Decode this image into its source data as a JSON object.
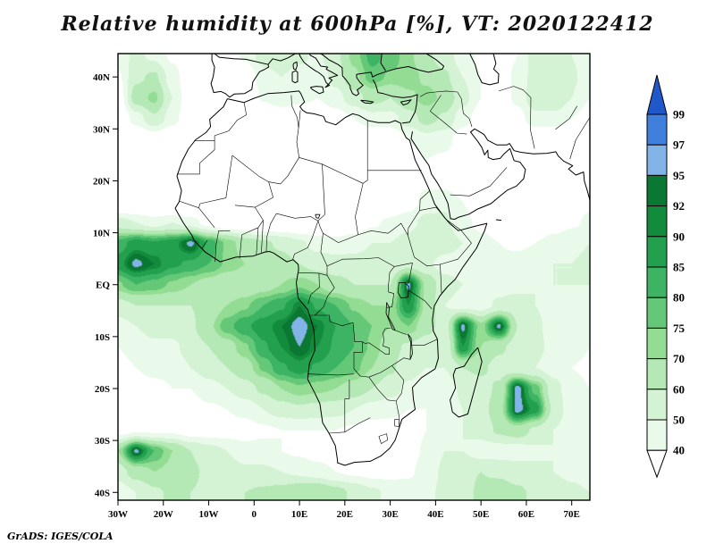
{
  "chart_data": {
    "type": "heatmap",
    "title": "Relative humidity at 600hPa [%], VT: 2020122412",
    "variable": "Relative humidity",
    "pressure_level": "600hPa",
    "units": "%",
    "valid_time": "2020122412",
    "credit": "GrADS: IGES/COLA",
    "region": {
      "lon_min": -30,
      "lon_max": 74,
      "lat_min": -41.5,
      "lat_max": 44.5
    },
    "x_ticks": [
      {
        "label": "30W",
        "lon": -30
      },
      {
        "label": "20W",
        "lon": -20
      },
      {
        "label": "10W",
        "lon": -10
      },
      {
        "label": "0",
        "lon": 0
      },
      {
        "label": "10E",
        "lon": 10
      },
      {
        "label": "20E",
        "lon": 20
      },
      {
        "label": "30E",
        "lon": 30
      },
      {
        "label": "40E",
        "lon": 40
      },
      {
        "label": "50E",
        "lon": 50
      },
      {
        "label": "60E",
        "lon": 60
      },
      {
        "label": "70E",
        "lon": 70
      }
    ],
    "y_ticks": [
      {
        "label": "40N",
        "lat": 40
      },
      {
        "label": "30N",
        "lat": 30
      },
      {
        "label": "20N",
        "lat": 20
      },
      {
        "label": "10N",
        "lat": 10
      },
      {
        "label": "EQ",
        "lat": 0
      },
      {
        "label": "10S",
        "lat": -10
      },
      {
        "label": "20S",
        "lat": -20
      },
      {
        "label": "30S",
        "lat": -30
      },
      {
        "label": "40S",
        "lat": -40
      }
    ],
    "levels": [
      40,
      50,
      60,
      70,
      75,
      80,
      85,
      90,
      92,
      95,
      97,
      99
    ],
    "colorbar_labels": [
      "99",
      "97",
      "95",
      "92",
      "90",
      "85",
      "80",
      "75",
      "70",
      "60",
      "50",
      "40"
    ],
    "band_colors": [
      "#ffffff",
      "#eafaea",
      "#d4f2d4",
      "#b4e8b4",
      "#93dc93",
      "#64c878",
      "#3cb464",
      "#23a04e",
      "#128c3c",
      "#0a7832",
      "#82b4e8",
      "#4080dc",
      "#2058cc"
    ],
    "grid": {
      "lon_start": -30,
      "lon_step": 4,
      "lat_start": 44,
      "lat_step": -4,
      "values": [
        [
          45,
          52,
          48,
          38,
          32,
          30,
          32,
          42,
          55,
          58,
          52,
          48,
          58,
          72,
          82,
          78,
          72,
          62,
          55,
          45,
          38,
          34,
          40,
          55,
          58,
          50,
          42
        ],
        [
          38,
          58,
          62,
          45,
          30,
          26,
          26,
          30,
          45,
          50,
          46,
          44,
          54,
          68,
          78,
          74,
          74,
          68,
          62,
          50,
          40,
          35,
          42,
          55,
          58,
          52,
          44
        ],
        [
          32,
          65,
          72,
          50,
          30,
          24,
          20,
          24,
          42,
          50,
          44,
          40,
          46,
          56,
          64,
          60,
          68,
          73,
          68,
          54,
          40,
          34,
          42,
          58,
          60,
          50,
          40
        ],
        [
          26,
          45,
          58,
          45,
          28,
          18,
          14,
          15,
          20,
          26,
          25,
          30,
          34,
          40,
          46,
          46,
          55,
          64,
          58,
          44,
          34,
          30,
          36,
          46,
          46,
          40,
          34
        ],
        [
          20,
          26,
          32,
          26,
          15,
          10,
          9,
          9,
          10,
          14,
          15,
          19,
          24,
          29,
          30,
          30,
          40,
          46,
          44,
          34,
          28,
          24,
          26,
          30,
          30,
          30,
          30
        ],
        [
          16,
          18,
          22,
          18,
          12,
          8,
          7,
          7,
          8,
          10,
          11,
          14,
          18,
          22,
          24,
          25,
          33,
          40,
          38,
          30,
          25,
          22,
          22,
          26,
          28,
          30,
          32
        ],
        [
          15,
          15,
          16,
          14,
          10,
          8,
          7,
          6,
          7,
          9,
          10,
          12,
          15,
          18,
          20,
          22,
          30,
          38,
          35,
          28,
          24,
          20,
          20,
          24,
          28,
          32,
          35
        ],
        [
          20,
          18,
          16,
          14,
          12,
          10,
          8,
          8,
          9,
          10,
          11,
          13,
          16,
          20,
          24,
          28,
          34,
          44,
          48,
          40,
          30,
          24,
          22,
          26,
          30,
          34,
          38
        ],
        [
          55,
          50,
          45,
          50,
          45,
          35,
          30,
          26,
          25,
          26,
          24,
          24,
          26,
          32,
          38,
          42,
          46,
          54,
          52,
          44,
          36,
          30,
          28,
          30,
          34,
          38,
          42
        ],
        [
          82,
          88,
          86,
          88,
          96,
          84,
          74,
          66,
          62,
          58,
          52,
          46,
          44,
          46,
          50,
          50,
          55,
          60,
          55,
          50,
          45,
          40,
          38,
          40,
          44,
          48,
          50
        ],
        [
          88,
          96,
          92,
          86,
          84,
          80,
          74,
          70,
          68,
          64,
          60,
          56,
          54,
          54,
          54,
          52,
          56,
          52,
          46,
          45,
          42,
          42,
          44,
          46,
          50,
          50,
          52
        ],
        [
          74,
          80,
          78,
          74,
          70,
          66,
          62,
          62,
          66,
          70,
          74,
          70,
          64,
          60,
          60,
          60,
          96,
          68,
          54,
          50,
          46,
          46,
          46,
          50,
          50,
          50,
          50
        ],
        [
          56,
          60,
          60,
          60,
          60,
          64,
          70,
          74,
          80,
          84,
          92,
          84,
          80,
          74,
          70,
          70,
          90,
          68,
          50,
          46,
          46,
          52,
          56,
          50,
          46,
          44,
          44
        ],
        [
          46,
          50,
          54,
          54,
          58,
          68,
          78,
          84,
          88,
          92,
          97,
          92,
          85,
          80,
          75,
          70,
          75,
          64,
          55,
          96,
          72,
          96,
          60,
          52,
          46,
          40,
          40
        ],
        [
          40,
          44,
          48,
          48,
          54,
          60,
          66,
          74,
          84,
          90,
          95,
          90,
          84,
          80,
          74,
          64,
          58,
          54,
          50,
          90,
          70,
          62,
          56,
          52,
          48,
          44,
          40
        ],
        [
          36,
          40,
          44,
          44,
          50,
          55,
          60,
          66,
          76,
          84,
          88,
          84,
          80,
          77,
          70,
          62,
          54,
          50,
          50,
          60,
          62,
          56,
          52,
          50,
          46,
          40,
          38
        ],
        [
          30,
          34,
          36,
          40,
          40,
          46,
          50,
          56,
          62,
          70,
          74,
          72,
          70,
          66,
          60,
          54,
          48,
          44,
          44,
          52,
          56,
          62,
          97,
          78,
          54,
          44,
          40
        ],
        [
          28,
          30,
          30,
          34,
          34,
          38,
          40,
          44,
          50,
          55,
          58,
          56,
          54,
          50,
          46,
          44,
          40,
          40,
          44,
          50,
          56,
          66,
          97,
          88,
          58,
          44,
          40
        ],
        [
          34,
          38,
          38,
          38,
          34,
          34,
          34,
          34,
          38,
          40,
          40,
          40,
          40,
          38,
          34,
          34,
          34,
          40,
          44,
          50,
          54,
          62,
          66,
          58,
          50,
          44,
          44
        ],
        [
          70,
          96,
          80,
          70,
          60,
          54,
          50,
          45,
          44,
          40,
          38,
          34,
          32,
          30,
          30,
          32,
          35,
          42,
          50,
          50,
          45,
          45,
          45,
          48,
          50,
          48,
          45
        ],
        [
          55,
          65,
          70,
          68,
          62,
          58,
          55,
          52,
          52,
          50,
          48,
          45,
          40,
          38,
          36,
          36,
          38,
          45,
          52,
          58,
          60,
          58,
          55,
          52,
          50,
          48,
          46
        ],
        [
          44,
          50,
          58,
          62,
          60,
          58,
          58,
          60,
          62,
          64,
          68,
          70,
          64,
          58,
          52,
          48,
          46,
          48,
          52,
          56,
          62,
          66,
          62,
          58,
          54,
          52,
          50
        ]
      ]
    }
  }
}
